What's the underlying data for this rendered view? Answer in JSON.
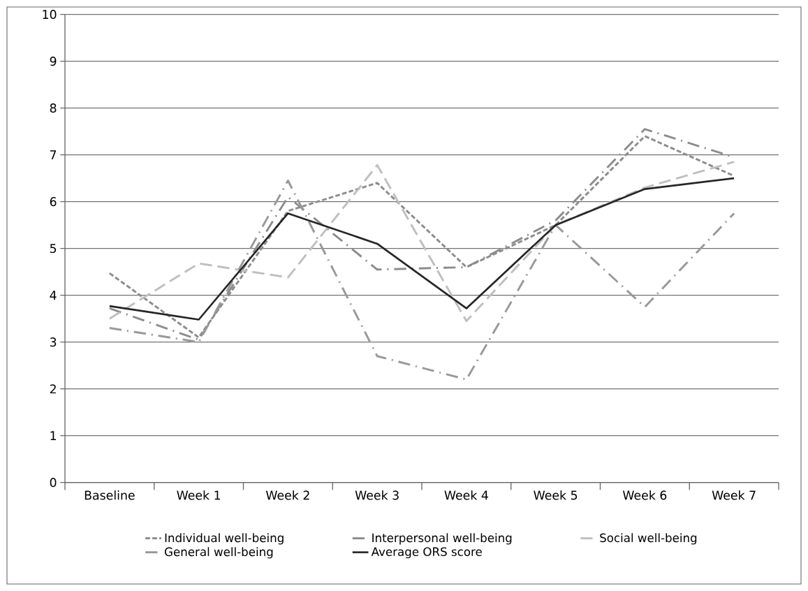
{
  "chart_data": {
    "type": "line",
    "categories": [
      "Baseline",
      "Week 1",
      "Week 2",
      "Week 3",
      "Week 4",
      "Week 5",
      "Week 6",
      "Week 7"
    ],
    "series": [
      {
        "name": "Individual well-being",
        "color": "#8c8c8c",
        "line_style": "dashed",
        "values": [
          4.47,
          3.1,
          5.8,
          6.4,
          4.6,
          5.5,
          7.4,
          6.55
        ]
      },
      {
        "name": "Interpersonal well-being",
        "color": "#8c8c8c",
        "line_style": "dashdotted",
        "values": [
          3.72,
          3.05,
          6.1,
          4.55,
          4.6,
          5.6,
          7.55,
          6.95
        ]
      },
      {
        "name": "Social well-being",
        "color": "#bfbfbf",
        "line_style": "loosely dashed",
        "values": [
          3.5,
          4.68,
          4.38,
          6.78,
          3.45,
          5.5,
          6.3,
          6.85
        ]
      },
      {
        "name": "General well-being",
        "color": "#999999",
        "line_style": "dashdotted",
        "values": [
          3.3,
          3.0,
          6.45,
          2.7,
          2.2,
          5.5,
          3.75,
          5.75
        ]
      },
      {
        "name": "Average ORS score",
        "color": "#262626",
        "line_style": "solid",
        "values": [
          3.77,
          3.48,
          5.75,
          5.1,
          3.72,
          5.5,
          6.27,
          6.5
        ]
      }
    ],
    "ylim": [
      0,
      10
    ],
    "yticks": [
      0,
      1,
      2,
      3,
      4,
      5,
      6,
      7,
      8,
      9,
      10
    ],
    "grid": "y",
    "legend": "bottom",
    "marker": "none"
  }
}
